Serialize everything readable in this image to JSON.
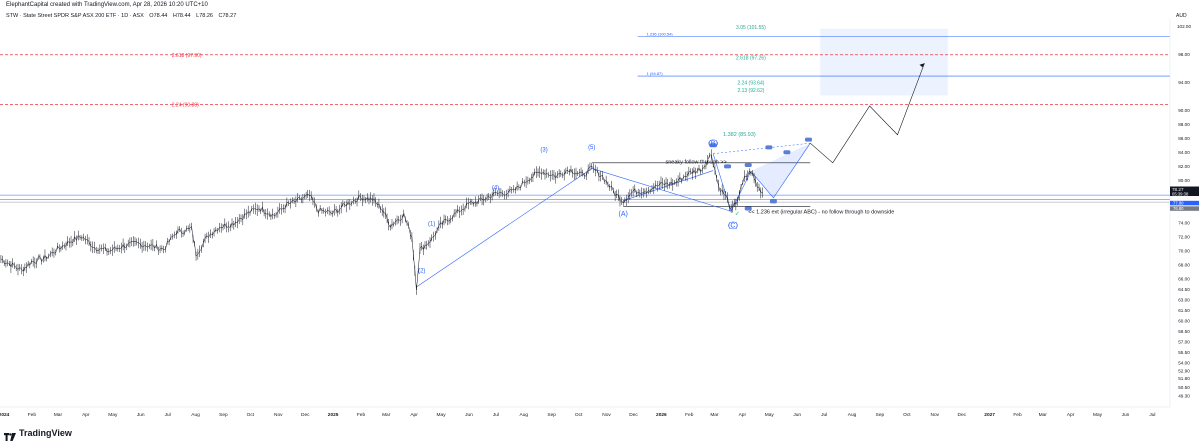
{
  "header": {
    "created_by": "ElephantCapital created with TradingView.com, Apr 28, 2026 10:20 UTC+10",
    "symbol": "STW · State Street SPDR S&P ASX 200 ETF · 1D · ASX",
    "ohlc": [
      "O78.44",
      "H78.44",
      "L78.26",
      "C78.27"
    ]
  },
  "footer": {
    "brand": "TradingView"
  },
  "chart_data": {
    "type": "line",
    "title": "STW · State Street SPDR S&P ASX 200 ETF · 1D · ASX",
    "currency": "AUD",
    "ylim": [
      47.7,
      103.0
    ],
    "x_ticks": [
      "2024",
      "Feb",
      "Mar",
      "Apr",
      "May",
      "Jun",
      "Jul",
      "Aug",
      "Sep",
      "Oct",
      "Nov",
      "Dec",
      "2025",
      "Feb",
      "Mar",
      "Apr",
      "May",
      "Jun",
      "Jul",
      "Aug",
      "Sep",
      "Oct",
      "Nov",
      "Dec",
      "2026",
      "Feb",
      "Mar",
      "Apr",
      "May",
      "Jun",
      "Jul",
      "Aug",
      "Sep",
      "Oct",
      "Nov",
      "Dec",
      "2027",
      "Feb",
      "Mar",
      "Apr",
      "May",
      "Jun",
      "Jul"
    ],
    "y_ticks": [
      102.0,
      98.0,
      94.0,
      90.0,
      88.0,
      86.0,
      84.0,
      82.0,
      80.0,
      78.0,
      76.0,
      74.0,
      72.0,
      70.0,
      68.0,
      66.0,
      64.5,
      63.0,
      61.5,
      60.0,
      58.5,
      57.0,
      55.5,
      54.0,
      52.9,
      51.8,
      50.5,
      49.3
    ],
    "price_labels": {
      "last": "78.27",
      "countdown": "05:39:38",
      "label_a": "77.80",
      "label_b": "76.80"
    },
    "series": [
      {
        "points": [
          [
            "2024-01-02",
            68.8
          ],
          [
            "2024-01-15",
            67.9
          ],
          [
            "2024-01-25",
            67.2
          ],
          [
            "2024-02-05",
            68.4
          ],
          [
            "2024-02-20",
            68.9
          ],
          [
            "2024-03-05",
            70.2
          ],
          [
            "2024-03-20",
            71.4
          ],
          [
            "2024-04-01",
            72.0
          ],
          [
            "2024-04-15",
            70.5
          ],
          [
            "2024-05-01",
            69.9
          ],
          [
            "2024-05-15",
            70.6
          ],
          [
            "2024-06-01",
            71.0
          ],
          [
            "2024-06-15",
            70.7
          ],
          [
            "2024-07-01",
            70.2
          ],
          [
            "2024-07-15",
            72.6
          ],
          [
            "2024-08-01",
            73.1
          ],
          [
            "2024-08-06",
            69.5
          ],
          [
            "2024-08-20",
            72.2
          ],
          [
            "2024-09-01",
            73.4
          ],
          [
            "2024-09-15",
            73.8
          ],
          [
            "2024-10-01",
            75.2
          ],
          [
            "2024-10-15",
            76.1
          ],
          [
            "2024-11-01",
            75.0
          ],
          [
            "2024-11-15",
            76.5
          ],
          [
            "2024-12-01",
            77.3
          ],
          [
            "2024-12-10",
            77.8
          ],
          [
            "2024-12-20",
            75.7
          ],
          [
            "2025-01-05",
            75.3
          ],
          [
            "2025-01-20",
            76.6
          ],
          [
            "2025-02-05",
            77.6
          ],
          [
            "2025-02-18",
            77.3
          ],
          [
            "2025-03-01",
            75.9
          ],
          [
            "2025-03-10",
            73.6
          ],
          [
            "2025-03-25",
            75.1
          ],
          [
            "2025-04-03",
            72.0
          ],
          [
            "2025-04-08",
            64.8
          ],
          [
            "2025-04-12",
            70.1
          ],
          [
            "2025-04-25",
            71.6
          ],
          [
            "2025-05-05",
            73.6
          ],
          [
            "2025-05-20",
            75.1
          ],
          [
            "2025-06-05",
            76.6
          ],
          [
            "2025-06-20",
            77.2
          ],
          [
            "2025-07-05",
            78.1
          ],
          [
            "2025-07-25",
            78.4
          ],
          [
            "2025-08-10",
            80.2
          ],
          [
            "2025-08-25",
            81.3
          ],
          [
            "2025-09-10",
            80.6
          ],
          [
            "2025-09-25",
            81.6
          ],
          [
            "2025-10-10",
            80.7
          ],
          [
            "2025-10-20",
            81.7
          ],
          [
            "2025-11-01",
            80.6
          ],
          [
            "2025-11-15",
            78.1
          ],
          [
            "2025-11-24",
            77.1
          ],
          [
            "2025-12-05",
            78.4
          ],
          [
            "2025-12-20",
            78.6
          ],
          [
            "2026-01-05",
            79.4
          ],
          [
            "2026-01-20",
            79.6
          ],
          [
            "2026-02-05",
            81.0
          ],
          [
            "2026-02-20",
            81.7
          ],
          [
            "2026-03-02",
            83.8
          ],
          [
            "2026-03-10",
            79.2
          ],
          [
            "2026-03-20",
            77.3
          ],
          [
            "2026-03-24",
            75.6
          ],
          [
            "2026-03-31",
            77.2
          ],
          [
            "2026-04-08",
            80.3
          ],
          [
            "2026-04-15",
            81.3
          ],
          [
            "2026-04-22",
            79.2
          ],
          [
            "2026-04-28",
            78.27
          ]
        ]
      }
    ],
    "annotations": {
      "wave_labels": [
        {
          "text": "(1)",
          "date": "2025-04-25",
          "price": 73.6
        },
        {
          "text": "(2)",
          "date": "2025-04-14",
          "price": 66.9
        },
        {
          "text": "(3)",
          "date": "2025-08-28",
          "price": 84.1
        },
        {
          "text": "(4)",
          "date": "2025-07-05",
          "price": 78.7
        },
        {
          "text": "(5)",
          "date": "2025-10-20",
          "price": 84.5
        },
        {
          "text": "(A)",
          "date": "2025-11-24",
          "price": 74.9
        },
        {
          "text": "(B)",
          "date": "2026-03-04",
          "price": 85.0
        },
        {
          "text": "(C)",
          "date": "2026-03-26",
          "price": 73.3
        }
      ],
      "texts": [
        {
          "text": "sneaky follow through >>",
          "date": "2026-01-10",
          "price": 82.4,
          "color": "#131722"
        },
        {
          "text": "<< 1.236 ext (irregular ABC) - no follow through to downside",
          "date": "2026-04-12",
          "price": 75.3,
          "color": "#131722"
        },
        {
          "text": "1.382 (85.93)",
          "date": "2026-03-15",
          "price": 86.3,
          "color": "#22ab94"
        }
      ],
      "red_levels": [
        {
          "label": "2.618 (97.90)",
          "price": 97.9
        },
        {
          "label": "2.24 (90.80)",
          "price": 90.8
        }
      ],
      "blue_levels": [
        {
          "label": "1.236 (100.54)",
          "price": 100.54
        },
        {
          "label": "1 (94.87)",
          "price": 94.87
        }
      ],
      "green_labels": [
        {
          "label": "3.05 (101.55)",
          "price": 101.55
        },
        {
          "label": "2.618 (97.26)",
          "price": 97.26
        },
        {
          "label": "2.24 (93.64)",
          "price": 93.64
        },
        {
          "label": "2.13 (92.62)",
          "price": 92.62
        }
      ]
    }
  }
}
